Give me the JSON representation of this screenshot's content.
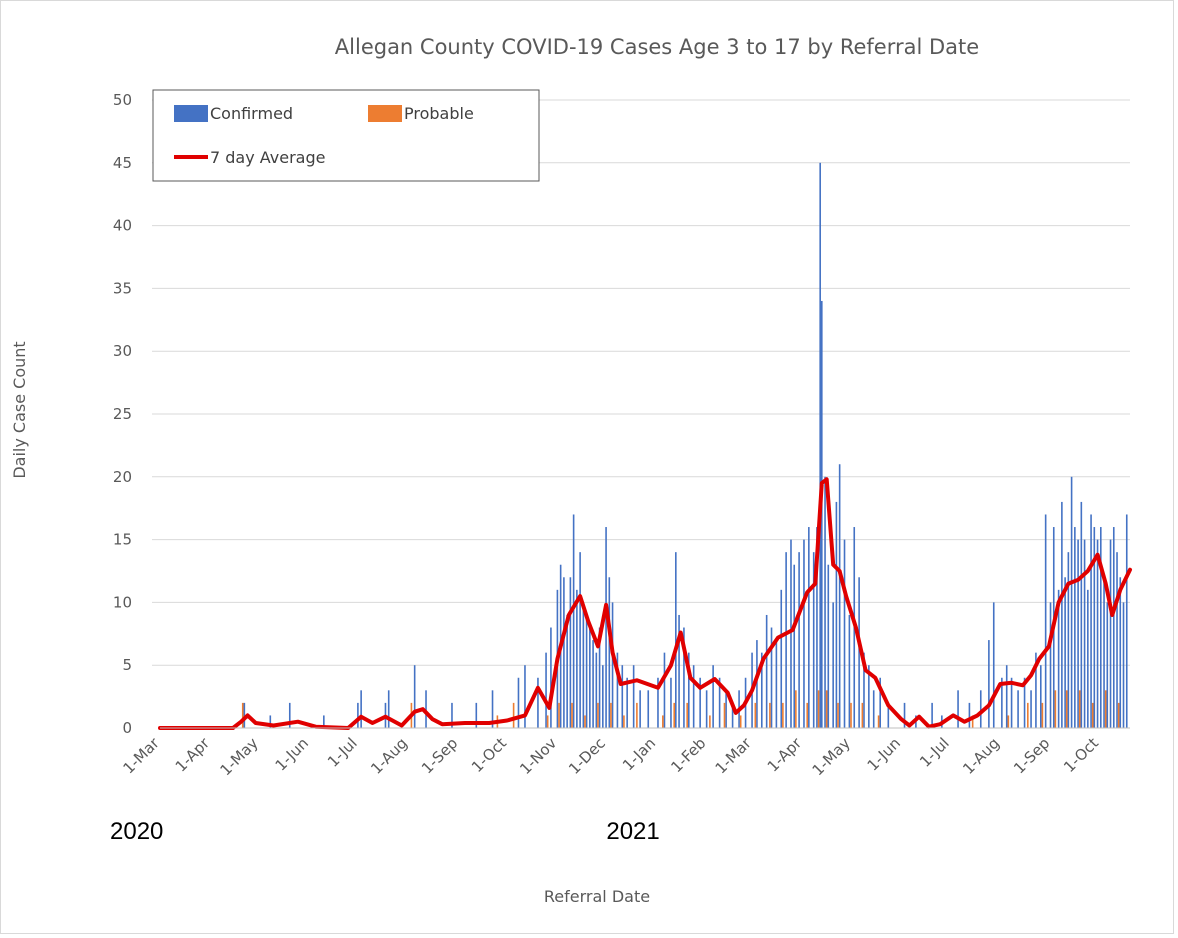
{
  "chart_data": {
    "type": "bar",
    "title": "Allegan County COVID-19 Cases Age 3 to 17 by Referral Date",
    "xlabel": "Referral Date",
    "ylabel": "Daily Case Count",
    "ylim": [
      0,
      50
    ],
    "yticks": [
      0,
      5,
      10,
      15,
      20,
      25,
      30,
      35,
      40,
      45,
      50
    ],
    "x_start": "2020-03-01",
    "x_end": "2021-10-20",
    "x_ticks": [
      "1-Mar",
      "1-Apr",
      "1-May",
      "1-Jun",
      "1-Jul",
      "1-Aug",
      "1-Sep",
      "1-Oct",
      "1-Nov",
      "1-Dec",
      "1-Jan",
      "1-Feb",
      "1-Mar",
      "1-Apr",
      "1-May",
      "1-Jun",
      "1-Jul",
      "1-Aug",
      "1-Sep",
      "1-Oct"
    ],
    "x_tick_dates": [
      "2020-03-01",
      "2020-04-01",
      "2020-05-01",
      "2020-06-01",
      "2020-07-01",
      "2020-08-01",
      "2020-09-01",
      "2020-10-01",
      "2020-11-01",
      "2020-12-01",
      "2021-01-01",
      "2021-02-01",
      "2021-03-01",
      "2021-04-01",
      "2021-05-01",
      "2021-06-01",
      "2021-07-01",
      "2021-08-01",
      "2021-09-01",
      "2021-10-01"
    ],
    "year_labels": [
      {
        "text": "2020",
        "date": "2020-03-01"
      },
      {
        "text": "2021",
        "date": "2021-01-01"
      }
    ],
    "legend": {
      "position": "top-left",
      "items": [
        "Confirmed",
        "Probable",
        "7 day Average"
      ]
    },
    "grid": true,
    "colors": {
      "confirmed": "#4472c4",
      "probable": "#ed7d31",
      "average": "#e00000"
    },
    "series": [
      {
        "name": "Confirmed",
        "type": "bar",
        "points": [
          [
            "2020-04-22",
            2
          ],
          [
            "2020-05-08",
            1
          ],
          [
            "2020-05-20",
            2
          ],
          [
            "2020-06-10",
            1
          ],
          [
            "2020-07-01",
            2
          ],
          [
            "2020-07-03",
            3
          ],
          [
            "2020-07-18",
            2
          ],
          [
            "2020-07-20",
            3
          ],
          [
            "2020-08-05",
            5
          ],
          [
            "2020-08-12",
            3
          ],
          [
            "2020-08-28",
            2
          ],
          [
            "2020-09-12",
            2
          ],
          [
            "2020-09-22",
            3
          ],
          [
            "2020-10-08",
            4
          ],
          [
            "2020-10-12",
            5
          ],
          [
            "2020-10-20",
            4
          ],
          [
            "2020-10-25",
            6
          ],
          [
            "2020-10-28",
            8
          ],
          [
            "2020-11-01",
            11
          ],
          [
            "2020-11-03",
            13
          ],
          [
            "2020-11-05",
            12
          ],
          [
            "2020-11-07",
            9
          ],
          [
            "2020-11-09",
            12
          ],
          [
            "2020-11-11",
            17
          ],
          [
            "2020-11-13",
            11
          ],
          [
            "2020-11-15",
            14
          ],
          [
            "2020-11-17",
            10
          ],
          [
            "2020-11-19",
            9
          ],
          [
            "2020-11-21",
            8
          ],
          [
            "2020-11-23",
            7
          ],
          [
            "2020-11-25",
            6
          ],
          [
            "2020-11-27",
            8
          ],
          [
            "2020-11-29",
            5
          ],
          [
            "2020-12-01",
            16
          ],
          [
            "2020-12-03",
            12
          ],
          [
            "2020-12-05",
            10
          ],
          [
            "2020-12-08",
            6
          ],
          [
            "2020-12-11",
            5
          ],
          [
            "2020-12-14",
            4
          ],
          [
            "2020-12-18",
            5
          ],
          [
            "2020-12-22",
            3
          ],
          [
            "2020-12-27",
            3
          ],
          [
            "2021-01-02",
            4
          ],
          [
            "2021-01-06",
            6
          ],
          [
            "2021-01-10",
            4
          ],
          [
            "2021-01-13",
            14
          ],
          [
            "2021-01-15",
            9
          ],
          [
            "2021-01-18",
            8
          ],
          [
            "2021-01-21",
            6
          ],
          [
            "2021-01-24",
            5
          ],
          [
            "2021-01-28",
            4
          ],
          [
            "2021-02-01",
            3
          ],
          [
            "2021-02-05",
            5
          ],
          [
            "2021-02-09",
            4
          ],
          [
            "2021-02-13",
            3
          ],
          [
            "2021-02-17",
            2
          ],
          [
            "2021-02-21",
            3
          ],
          [
            "2021-02-25",
            4
          ],
          [
            "2021-03-01",
            6
          ],
          [
            "2021-03-04",
            7
          ],
          [
            "2021-03-07",
            6
          ],
          [
            "2021-03-10",
            9
          ],
          [
            "2021-03-13",
            8
          ],
          [
            "2021-03-16",
            7
          ],
          [
            "2021-03-19",
            11
          ],
          [
            "2021-03-22",
            14
          ],
          [
            "2021-03-25",
            15
          ],
          [
            "2021-03-27",
            13
          ],
          [
            "2021-03-30",
            14
          ],
          [
            "2021-04-02",
            15
          ],
          [
            "2021-04-05",
            16
          ],
          [
            "2021-04-08",
            14
          ],
          [
            "2021-04-10",
            16
          ],
          [
            "2021-04-12",
            45
          ],
          [
            "2021-04-13",
            34
          ],
          [
            "2021-04-15",
            20
          ],
          [
            "2021-04-17",
            13
          ],
          [
            "2021-04-20",
            10
          ],
          [
            "2021-04-22",
            18
          ],
          [
            "2021-04-24",
            21
          ],
          [
            "2021-04-27",
            15
          ],
          [
            "2021-04-30",
            9
          ],
          [
            "2021-05-03",
            16
          ],
          [
            "2021-05-06",
            12
          ],
          [
            "2021-05-09",
            6
          ],
          [
            "2021-05-12",
            5
          ],
          [
            "2021-05-15",
            3
          ],
          [
            "2021-05-19",
            4
          ],
          [
            "2021-05-24",
            2
          ],
          [
            "2021-06-03",
            2
          ],
          [
            "2021-06-10",
            1
          ],
          [
            "2021-06-20",
            2
          ],
          [
            "2021-06-26",
            1
          ],
          [
            "2021-07-06",
            3
          ],
          [
            "2021-07-13",
            2
          ],
          [
            "2021-07-20",
            3
          ],
          [
            "2021-07-25",
            7
          ],
          [
            "2021-07-28",
            10
          ],
          [
            "2021-08-02",
            4
          ],
          [
            "2021-08-05",
            5
          ],
          [
            "2021-08-08",
            4
          ],
          [
            "2021-08-12",
            3
          ],
          [
            "2021-08-16",
            4
          ],
          [
            "2021-08-20",
            3
          ],
          [
            "2021-08-23",
            6
          ],
          [
            "2021-08-26",
            5
          ],
          [
            "2021-08-29",
            17
          ],
          [
            "2021-09-01",
            10
          ],
          [
            "2021-09-03",
            16
          ],
          [
            "2021-09-06",
            11
          ],
          [
            "2021-09-08",
            18
          ],
          [
            "2021-09-10",
            12
          ],
          [
            "2021-09-12",
            14
          ],
          [
            "2021-09-14",
            20
          ],
          [
            "2021-09-16",
            16
          ],
          [
            "2021-09-18",
            15
          ],
          [
            "2021-09-20",
            18
          ],
          [
            "2021-09-22",
            15
          ],
          [
            "2021-09-24",
            11
          ],
          [
            "2021-09-26",
            17
          ],
          [
            "2021-09-28",
            16
          ],
          [
            "2021-09-30",
            15
          ],
          [
            "2021-10-02",
            16
          ],
          [
            "2021-10-04",
            12
          ],
          [
            "2021-10-06",
            10
          ],
          [
            "2021-10-08",
            15
          ],
          [
            "2021-10-10",
            16
          ],
          [
            "2021-10-12",
            14
          ],
          [
            "2021-10-14",
            12
          ],
          [
            "2021-10-16",
            10
          ],
          [
            "2021-10-18",
            17
          ]
        ]
      },
      {
        "name": "Probable",
        "type": "bar",
        "points": [
          [
            "2020-04-21",
            2
          ],
          [
            "2020-08-03",
            2
          ],
          [
            "2020-09-25",
            1
          ],
          [
            "2020-10-05",
            2
          ],
          [
            "2020-10-26",
            1
          ],
          [
            "2020-11-02",
            2
          ],
          [
            "2020-11-10",
            2
          ],
          [
            "2020-11-18",
            1
          ],
          [
            "2020-11-26",
            2
          ],
          [
            "2020-12-04",
            2
          ],
          [
            "2020-12-12",
            1
          ],
          [
            "2020-12-20",
            2
          ],
          [
            "2021-01-05",
            1
          ],
          [
            "2021-01-12",
            2
          ],
          [
            "2021-01-20",
            2
          ],
          [
            "2021-02-03",
            1
          ],
          [
            "2021-02-12",
            2
          ],
          [
            "2021-02-22",
            1
          ],
          [
            "2021-03-03",
            2
          ],
          [
            "2021-03-12",
            2
          ],
          [
            "2021-03-20",
            2
          ],
          [
            "2021-03-28",
            3
          ],
          [
            "2021-04-04",
            2
          ],
          [
            "2021-04-11",
            3
          ],
          [
            "2021-04-16",
            3
          ],
          [
            "2021-04-23",
            2
          ],
          [
            "2021-05-01",
            2
          ],
          [
            "2021-05-08",
            2
          ],
          [
            "2021-05-18",
            1
          ],
          [
            "2021-07-15",
            1
          ],
          [
            "2021-08-06",
            1
          ],
          [
            "2021-08-18",
            2
          ],
          [
            "2021-08-27",
            2
          ],
          [
            "2021-09-04",
            3
          ],
          [
            "2021-09-11",
            3
          ],
          [
            "2021-09-19",
            3
          ],
          [
            "2021-09-27",
            2
          ],
          [
            "2021-10-05",
            3
          ],
          [
            "2021-10-13",
            2
          ]
        ]
      },
      {
        "name": "7 day Average",
        "type": "line",
        "points": [
          [
            "2020-03-01",
            0
          ],
          [
            "2020-04-15",
            0
          ],
          [
            "2020-04-20",
            0.5
          ],
          [
            "2020-04-24",
            1
          ],
          [
            "2020-04-29",
            0.4
          ],
          [
            "2020-05-10",
            0.2
          ],
          [
            "2020-05-25",
            0.5
          ],
          [
            "2020-06-05",
            0.1
          ],
          [
            "2020-06-25",
            0
          ],
          [
            "2020-07-03",
            0.9
          ],
          [
            "2020-07-10",
            0.4
          ],
          [
            "2020-07-18",
            0.9
          ],
          [
            "2020-07-28",
            0.2
          ],
          [
            "2020-08-05",
            1.3
          ],
          [
            "2020-08-10",
            1.5
          ],
          [
            "2020-08-16",
            0.7
          ],
          [
            "2020-08-22",
            0.3
          ],
          [
            "2020-09-05",
            0.4
          ],
          [
            "2020-09-20",
            0.4
          ],
          [
            "2020-10-01",
            0.6
          ],
          [
            "2020-10-12",
            1.0
          ],
          [
            "2020-10-20",
            3.2
          ],
          [
            "2020-10-27",
            1.6
          ],
          [
            "2020-11-01",
            5.5
          ],
          [
            "2020-11-08",
            9.0
          ],
          [
            "2020-11-15",
            10.5
          ],
          [
            "2020-11-20",
            8.5
          ],
          [
            "2020-11-26",
            6.5
          ],
          [
            "2020-12-01",
            9.8
          ],
          [
            "2020-12-05",
            6.0
          ],
          [
            "2020-12-10",
            3.5
          ],
          [
            "2020-12-20",
            3.8
          ],
          [
            "2021-01-02",
            3.2
          ],
          [
            "2021-01-10",
            5.0
          ],
          [
            "2021-01-16",
            7.6
          ],
          [
            "2021-01-22",
            4.0
          ],
          [
            "2021-01-28",
            3.2
          ],
          [
            "2021-02-06",
            3.9
          ],
          [
            "2021-02-14",
            2.8
          ],
          [
            "2021-02-19",
            1.2
          ],
          [
            "2021-02-24",
            1.8
          ],
          [
            "2021-03-01",
            3.0
          ],
          [
            "2021-03-08",
            5.5
          ],
          [
            "2021-03-17",
            7.2
          ],
          [
            "2021-03-26",
            7.8
          ],
          [
            "2021-04-04",
            10.8
          ],
          [
            "2021-04-09",
            11.5
          ],
          [
            "2021-04-13",
            19.5
          ],
          [
            "2021-04-16",
            19.8
          ],
          [
            "2021-04-20",
            13.0
          ],
          [
            "2021-04-24",
            12.5
          ],
          [
            "2021-04-28",
            10.5
          ],
          [
            "2021-05-04",
            8.0
          ],
          [
            "2021-05-10",
            4.6
          ],
          [
            "2021-05-16",
            4.0
          ],
          [
            "2021-05-24",
            1.8
          ],
          [
            "2021-06-01",
            0.7
          ],
          [
            "2021-06-06",
            0.2
          ],
          [
            "2021-06-12",
            0.9
          ],
          [
            "2021-06-18",
            0.1
          ],
          [
            "2021-06-25",
            0.3
          ],
          [
            "2021-07-03",
            1.0
          ],
          [
            "2021-07-10",
            0.5
          ],
          [
            "2021-07-18",
            1.0
          ],
          [
            "2021-07-25",
            1.8
          ],
          [
            "2021-08-01",
            3.5
          ],
          [
            "2021-08-08",
            3.6
          ],
          [
            "2021-08-15",
            3.4
          ],
          [
            "2021-08-20",
            4.2
          ],
          [
            "2021-08-25",
            5.5
          ],
          [
            "2021-08-31",
            6.5
          ],
          [
            "2021-09-06",
            10.0
          ],
          [
            "2021-09-12",
            11.5
          ],
          [
            "2021-09-18",
            11.8
          ],
          [
            "2021-09-24",
            12.5
          ],
          [
            "2021-09-30",
            13.8
          ],
          [
            "2021-10-05",
            11.5
          ],
          [
            "2021-10-09",
            9.0
          ],
          [
            "2021-10-14",
            11.0
          ],
          [
            "2021-10-20",
            12.6
          ]
        ]
      }
    ]
  }
}
